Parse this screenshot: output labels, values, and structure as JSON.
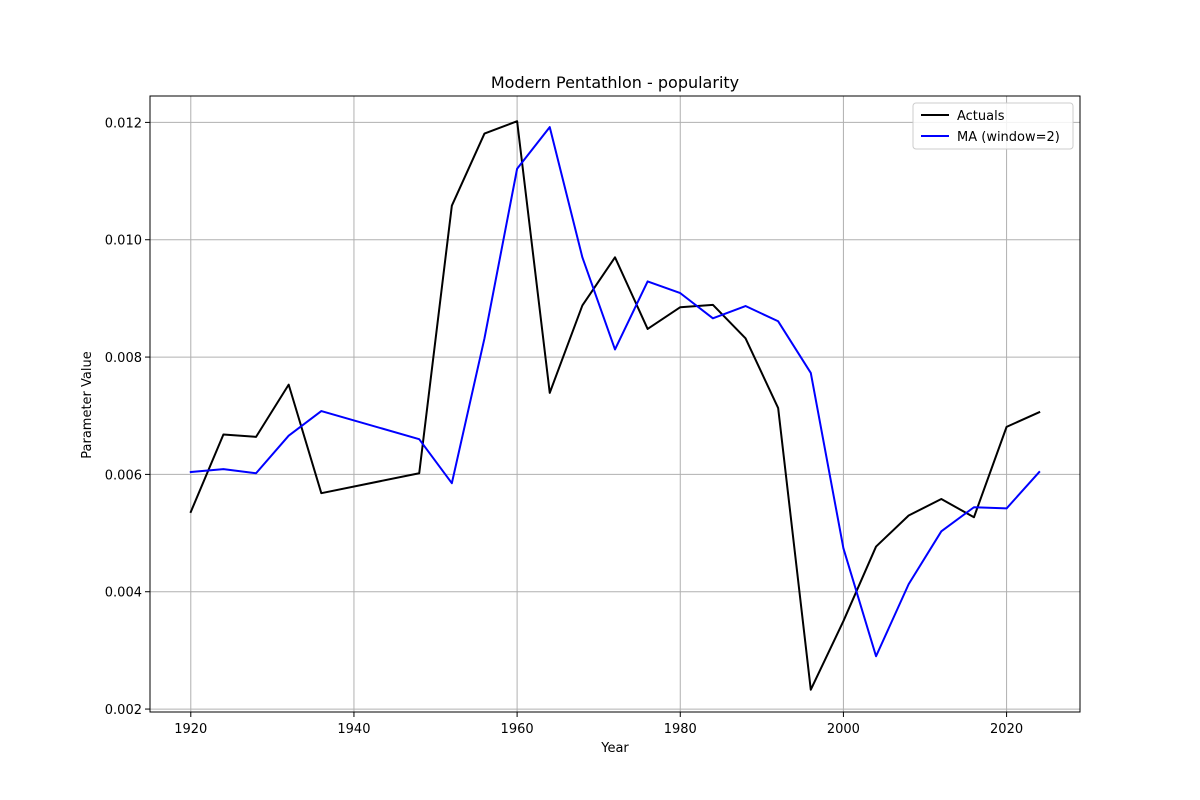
{
  "chart_data": {
    "type": "line",
    "title": "Modern Pentathlon - popularity",
    "xlabel": "Year",
    "ylabel": "Parameter Value",
    "xlim": [
      1915,
      2029
    ],
    "ylim": [
      0.00195,
      0.01245
    ],
    "xticks": [
      1920,
      1940,
      1960,
      1980,
      2000,
      2020
    ],
    "xtick_labels": [
      "1920",
      "1940",
      "1960",
      "1980",
      "2000",
      "2020"
    ],
    "yticks": [
      0.002,
      0.004,
      0.006,
      0.008,
      0.01,
      0.012
    ],
    "ytick_labels": [
      "0.002",
      "0.004",
      "0.006",
      "0.008",
      "0.010",
      "0.012"
    ],
    "grid": true,
    "legend_position": "upper-right",
    "x": [
      1920,
      1924,
      1928,
      1932,
      1936,
      1948,
      1952,
      1956,
      1960,
      1964,
      1968,
      1972,
      1976,
      1980,
      1984,
      1988,
      1992,
      1996,
      2000,
      2004,
      2008,
      2012,
      2016,
      2020,
      2024
    ],
    "series": [
      {
        "name": "Actuals",
        "color": "#000000",
        "values": [
          0.00536,
          0.00668,
          0.00664,
          0.00753,
          0.00568,
          0.00602,
          0.01058,
          0.01181,
          0.01202,
          0.00739,
          0.00888,
          0.0097,
          0.00848,
          0.00885,
          0.00889,
          0.00832,
          0.00713,
          0.00233,
          0.0035,
          0.00477,
          0.0053,
          0.00558,
          0.00527,
          0.00681,
          0.00706
        ]
      },
      {
        "name": "MA (window=2)",
        "color": "#0000ff",
        "values": [
          0.00604,
          0.00609,
          0.00602,
          0.00666,
          0.00708,
          0.0066,
          0.00585,
          0.00832,
          0.01121,
          0.01192,
          0.0097,
          0.00813,
          0.00929,
          0.00909,
          0.00866,
          0.00887,
          0.00861,
          0.00773,
          0.00474,
          0.0029,
          0.00413,
          0.00503,
          0.00544,
          0.00542,
          0.00604
        ]
      }
    ]
  }
}
